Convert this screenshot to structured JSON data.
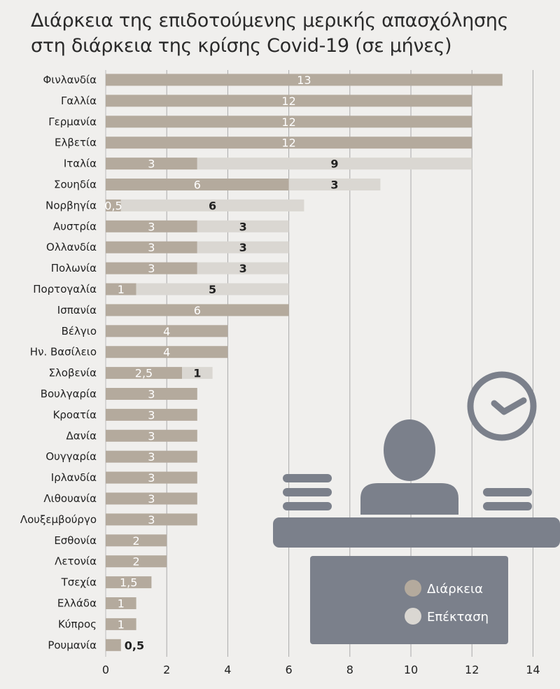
{
  "title_line1": "Διάρκεια της επιδοτούμενης μερικής απασχόλησης",
  "title_line2": "στη διάρκεια της κρίσης Covid-19 (σε μήνες)",
  "colors": {
    "duration": "#b4aa9d",
    "extension": "#dad7d2",
    "grid": "#aaaaaa",
    "illustration": "#7b808b",
    "background": "#f0efed"
  },
  "legend": [
    {
      "label": "Διάρκεια",
      "color": "#b4aa9d"
    },
    {
      "label": "Επέκταση",
      "color": "#dad7d2"
    }
  ],
  "illustration_icons": [
    "clock-icon",
    "person-icon",
    "desk-icon"
  ],
  "chart_data": {
    "type": "bar",
    "orientation": "horizontal",
    "stacked": true,
    "title": "Διάρκεια της επιδοτούμενης μερικής απασχόλησης στη διάρκεια της κρίσης Covid-19 (σε μήνες)",
    "xlim": [
      0,
      14
    ],
    "x_ticks": [
      0,
      2,
      4,
      6,
      8,
      10,
      12,
      14
    ],
    "grid": "vertical",
    "legend_position": "bottom-right",
    "categories": [
      "Φινλανδία",
      "Γαλλία",
      "Γερμανία",
      "Ελβετία",
      "Ιταλία",
      "Σουηδία",
      "Νορβηγία",
      "Αυστρία",
      "Ολλανδία",
      "Πολωνία",
      "Πορτογαλία",
      "Ισπανία",
      "Βέλγιο",
      "Ην. Βασίλειο",
      "Σλοβενία",
      "Βουλγαρία",
      "Κροατία",
      "Δανία",
      "Ουγγαρία",
      "Ιρλανδία",
      "Λιθουανία",
      "Λουξεμβούργο",
      "Εσθονία",
      "Λετονία",
      "Τσεχία",
      "Ελλάδα",
      "Κύπρος",
      "Ρουμανία"
    ],
    "series": [
      {
        "name": "Διάρκεια",
        "values": [
          13,
          12,
          12,
          12,
          3,
          6,
          0.5,
          3,
          3,
          3,
          1,
          6,
          4,
          4,
          2.5,
          3,
          3,
          3,
          3,
          3,
          3,
          3,
          2,
          2,
          1.5,
          1,
          1,
          0.5
        ],
        "labels": [
          "13",
          "12",
          "12",
          "12",
          "3",
          "6",
          "0,5",
          "3",
          "3",
          "3",
          "1",
          "6",
          "4",
          "4",
          "2,5",
          "3",
          "3",
          "3",
          "3",
          "3",
          "3",
          "3",
          "2",
          "2",
          "1,5",
          "1",
          "1",
          "0,5"
        ]
      },
      {
        "name": "Επέκταση",
        "values": [
          0,
          0,
          0,
          0,
          9,
          3,
          6,
          3,
          3,
          3,
          5,
          0,
          0,
          0,
          1,
          0,
          0,
          0,
          0,
          0,
          0,
          0,
          0,
          0,
          0,
          0,
          0,
          0
        ],
        "labels": [
          "",
          "",
          "",
          "",
          "9",
          "3",
          "6",
          "3",
          "3",
          "3",
          "5",
          "",
          "",
          "",
          "1",
          "",
          "",
          "",
          "",
          "",
          "",
          "",
          "",
          "",
          "",
          "",
          "",
          ""
        ]
      }
    ]
  }
}
